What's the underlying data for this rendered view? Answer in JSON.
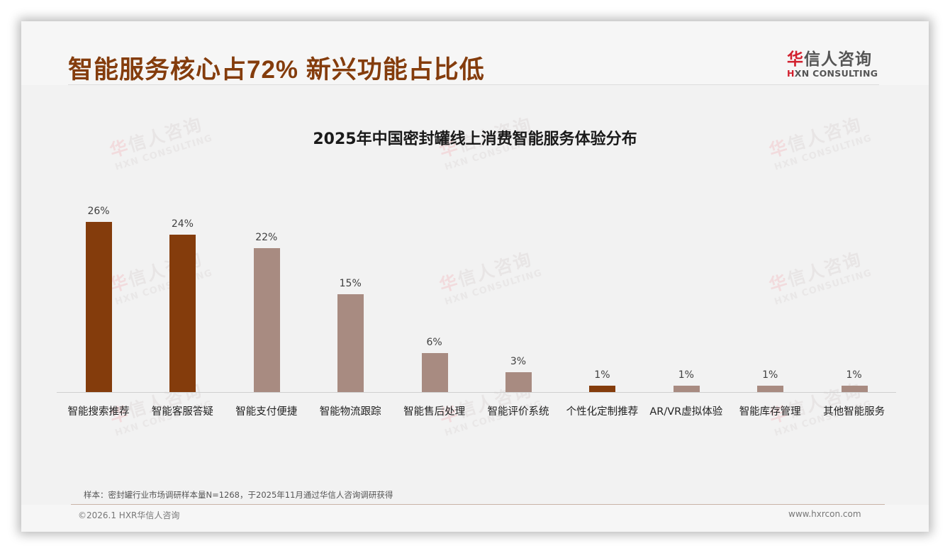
{
  "header": {
    "headline": "智能服务核心占72% 新兴功能占比低",
    "logo": {
      "cn_first": "华",
      "cn_rest": "信人咨询",
      "en_first": "H",
      "en_rest": "XN CONSULTING"
    }
  },
  "watermark": {
    "cn_first": "华",
    "cn_rest": "信人咨询",
    "en": "HXN CONSULTING"
  },
  "colors": {
    "highlight": "#843c0c",
    "normal": "#a88b81",
    "headline": "#843c0c"
  },
  "chart_data": {
    "type": "bar",
    "title": "2025年中国密封罐线上消费智能服务体验分布",
    "xlabel": "",
    "ylabel": "",
    "ylim": [
      0,
      30
    ],
    "grid": false,
    "legend": null,
    "categories": [
      "智能搜索推荐",
      "智能客服答疑",
      "智能支付便捷",
      "智能物流跟踪",
      "智能售后处理",
      "智能评价系统",
      "个性化定制推荐",
      "AR/VR虚拟体验",
      "智能库存管理",
      "其他智能服务"
    ],
    "values": [
      26,
      24,
      22,
      15,
      6,
      3,
      1,
      1,
      1,
      1
    ],
    "value_labels": [
      "26%",
      "24%",
      "22%",
      "15%",
      "6%",
      "3%",
      "1%",
      "1%",
      "1%",
      "1%"
    ],
    "bar_colors": [
      "#843c0c",
      "#843c0c",
      "#a88b81",
      "#a88b81",
      "#a88b81",
      "#a88b81",
      "#843c0c",
      "#a88b81",
      "#a88b81",
      "#a88b81"
    ],
    "unit": "%"
  },
  "footer": {
    "note": "样本：密封罐行业市场调研样本量N=1268，于2025年11月通过华信人咨询调研获得",
    "copyright": "©2026.1 HXR华信人咨询",
    "website": "www.hxrcon.com"
  }
}
